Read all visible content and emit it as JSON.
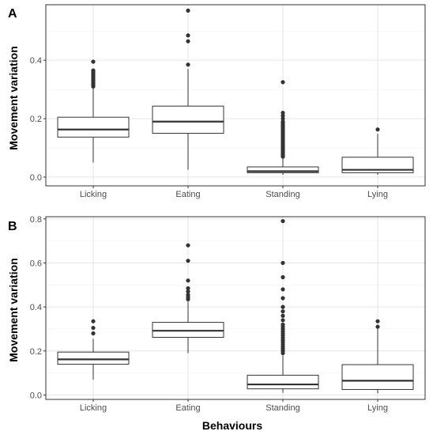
{
  "xlabel": "Behaviours",
  "ylabel": "Movement variation",
  "chart_data": [
    {
      "type": "boxplot",
      "panel": "A",
      "ylabel": "Movement variation",
      "categories": [
        "Licking",
        "Eating",
        "Standing",
        "Lying"
      ],
      "ylim": [
        -0.03,
        0.59
      ],
      "yticks": [
        0.0,
        0.2,
        0.4
      ],
      "ytick_labels": [
        "0.0",
        "0.2",
        "0.4"
      ],
      "grid": true,
      "boxes": [
        {
          "name": "Licking",
          "whisker_low": 0.05,
          "q1": 0.137,
          "median": 0.163,
          "q3": 0.205,
          "whisker_high": 0.305,
          "outliers": [
            0.31,
            0.315,
            0.32,
            0.325,
            0.33,
            0.335,
            0.34,
            0.345,
            0.35,
            0.355,
            0.36,
            0.365,
            0.395
          ]
        },
        {
          "name": "Eating",
          "whisker_low": 0.025,
          "q1": 0.15,
          "median": 0.19,
          "q3": 0.243,
          "whisker_high": 0.37,
          "outliers": [
            0.385,
            0.465,
            0.485,
            0.57
          ]
        },
        {
          "name": "Standing",
          "whisker_low": 0.008,
          "q1": 0.015,
          "median": 0.02,
          "q3": 0.035,
          "whisker_high": 0.065,
          "outliers": [
            0.07,
            0.075,
            0.08,
            0.085,
            0.09,
            0.095,
            0.1,
            0.105,
            0.11,
            0.115,
            0.12,
            0.125,
            0.13,
            0.135,
            0.14,
            0.145,
            0.15,
            0.155,
            0.16,
            0.165,
            0.17,
            0.175,
            0.18,
            0.185,
            0.19,
            0.2,
            0.21,
            0.22,
            0.325
          ]
        },
        {
          "name": "Lying",
          "whisker_low": 0.008,
          "q1": 0.015,
          "median": 0.025,
          "q3": 0.068,
          "whisker_high": 0.148,
          "outliers": [
            0.163
          ]
        }
      ]
    },
    {
      "type": "boxplot",
      "panel": "B",
      "ylabel": "Movement variation",
      "xlabel": "Behaviours",
      "categories": [
        "Licking",
        "Eating",
        "Standing",
        "Lying"
      ],
      "ylim": [
        -0.02,
        0.81
      ],
      "yticks": [
        0.0,
        0.2,
        0.4,
        0.6,
        0.8
      ],
      "ytick_labels": [
        "0.0",
        "0.2",
        "0.4",
        "0.6",
        "0.8"
      ],
      "grid": true,
      "boxes": [
        {
          "name": "Licking",
          "whisker_low": 0.07,
          "q1": 0.14,
          "median": 0.162,
          "q3": 0.195,
          "whisker_high": 0.255,
          "outliers": [
            0.28,
            0.305,
            0.335
          ]
        },
        {
          "name": "Eating",
          "whisker_low": 0.19,
          "q1": 0.262,
          "median": 0.292,
          "q3": 0.33,
          "whisker_high": 0.425,
          "outliers": [
            0.435,
            0.445,
            0.455,
            0.47,
            0.485,
            0.52,
            0.61,
            0.68
          ]
        },
        {
          "name": "Standing",
          "whisker_low": 0.01,
          "q1": 0.028,
          "median": 0.048,
          "q3": 0.09,
          "whisker_high": 0.18,
          "outliers": [
            0.19,
            0.2,
            0.21,
            0.22,
            0.23,
            0.24,
            0.25,
            0.26,
            0.27,
            0.28,
            0.29,
            0.3,
            0.31,
            0.32,
            0.34,
            0.36,
            0.38,
            0.4,
            0.44,
            0.48,
            0.535,
            0.6,
            0.79
          ]
        },
        {
          "name": "Lying",
          "whisker_low": 0.008,
          "q1": 0.025,
          "median": 0.065,
          "q3": 0.138,
          "whisker_high": 0.3,
          "outliers": [
            0.31,
            0.335
          ]
        }
      ]
    }
  ]
}
